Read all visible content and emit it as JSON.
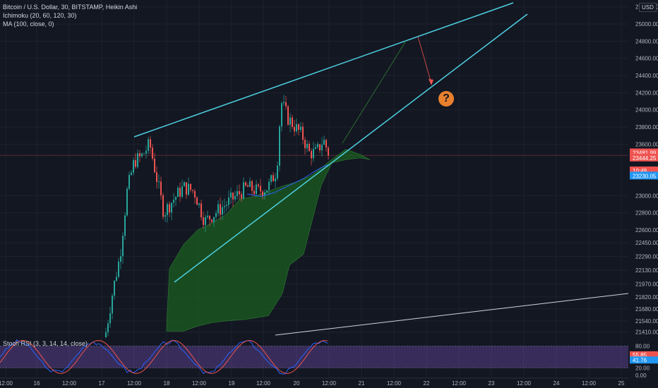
{
  "legend": {
    "symbol": "Bitcoin / U.S. Dollar, 30, BITSTAMP, Heikin Ashi",
    "ichimoku": "Ichimoku (20, 60, 120, 30)",
    "ma": "MA (100, close, 0)",
    "stoch": "Stoch RSI (3, 3, 14, 14, close)"
  },
  "currency": "USD",
  "annotation_symbol": "?",
  "colors": {
    "background": "#131722",
    "up": "#26a69a",
    "down": "#ef5350",
    "trendline": "#4dd0e1",
    "cloud": "#1b5e20",
    "ma": "#2962ff",
    "stoch_k": "#2962ff",
    "stoch_d": "#ef5350",
    "stoch_band": "#7e57c2",
    "question": "#e8802d"
  },
  "chart_data": {
    "type": "candlestick",
    "price_axis": {
      "ticks": [
        "25200.00",
        "25000.00",
        "24800.00",
        "24600.00",
        "24400.00",
        "24200.00",
        "24000.00",
        "23800.00",
        "23600.00",
        "23000.00",
        "22800.00",
        "22600.00",
        "22450.00",
        "22290.00",
        "22130.00",
        "21970.00",
        "21820.00",
        "21680.00",
        "21540.00",
        "21410.00"
      ],
      "tick_values": [
        25200,
        25000,
        24800,
        24600,
        24400,
        24200,
        24000,
        23800,
        23600,
        23000,
        22800,
        22600,
        22450,
        22290,
        22130,
        21970,
        21820,
        21680,
        21540,
        21410
      ]
    },
    "time_axis": {
      "labels": [
        "12:00",
        "16",
        "12:00",
        "17",
        "12:00",
        "18",
        "12:00",
        "19",
        "12:00",
        "20",
        "12:00",
        "21",
        "12:00",
        "22",
        "12:00",
        "23",
        "12:00",
        "24",
        "12:00",
        "25"
      ]
    },
    "price_tags": [
      {
        "label": "23481.99",
        "color": "#ef5350"
      },
      {
        "label": "23444.25",
        "color": "#ef5350"
      },
      {
        "label": "10:49",
        "color": "#ef5350"
      },
      {
        "label": "23230.05",
        "color": "#2196f3"
      }
    ],
    "stoch_axis": {
      "ticks": [
        "80.00",
        "20.00",
        "0.00"
      ],
      "tick_values": [
        80,
        20,
        0
      ]
    },
    "stoch_tags": [
      {
        "label": "55.85",
        "color": "#ef5350"
      },
      {
        "label": "41.76",
        "color": "#2196f3"
      }
    ],
    "trendlines": [
      {
        "name": "upper",
        "from": {
          "slot": 0.355,
          "price": 23730
        },
        "to": {
          "slot": 1.0,
          "price": 25200
        }
      },
      {
        "name": "lower",
        "from": {
          "slot": 0.4,
          "price": 21950
        },
        "to": {
          "slot": 1.02,
          "price": 25050
        }
      },
      {
        "name": "long-support",
        "from": {
          "slot": 0.55,
          "price": 21410
        },
        "to": {
          "slot": 1.2,
          "price": 21820
        }
      }
    ]
  }
}
